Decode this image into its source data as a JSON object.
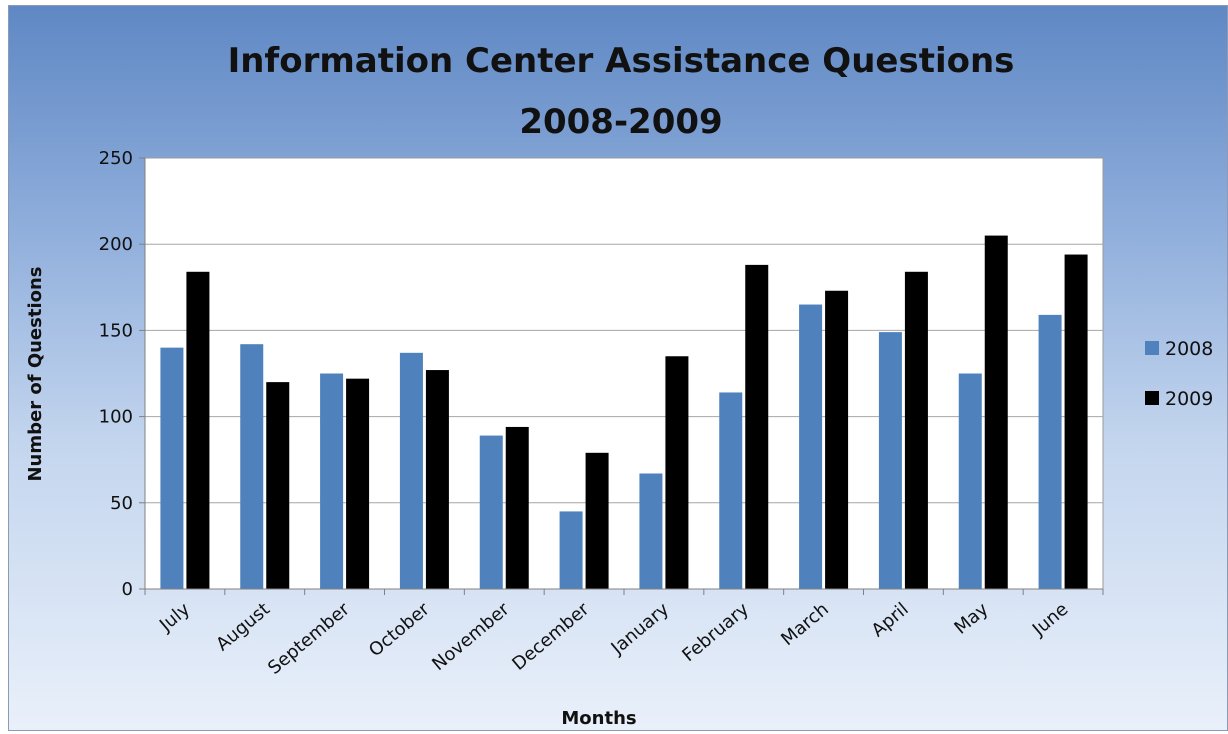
{
  "chart_data": {
    "type": "bar",
    "title": [
      "Information Center Assistance Questions",
      "2008-2009"
    ],
    "xlabel": "Months",
    "ylabel": "Number of Questions",
    "ylim": [
      0,
      250
    ],
    "yticks": [
      0,
      50,
      100,
      150,
      200,
      250
    ],
    "grid": true,
    "legend_position": "right",
    "categories": [
      "July",
      "August",
      "September",
      "October",
      "November",
      "December",
      "January",
      "February",
      "March",
      "April",
      "May",
      "June"
    ],
    "series": [
      {
        "name": "2008",
        "color": "#4f81bd",
        "values": [
          140,
          142,
          125,
          137,
          89,
          45,
          67,
          114,
          165,
          149,
          125,
          159
        ]
      },
      {
        "name": "2009",
        "color": "#000000",
        "values": [
          184,
          120,
          122,
          127,
          94,
          79,
          135,
          188,
          173,
          184,
          205,
          194
        ]
      }
    ]
  }
}
